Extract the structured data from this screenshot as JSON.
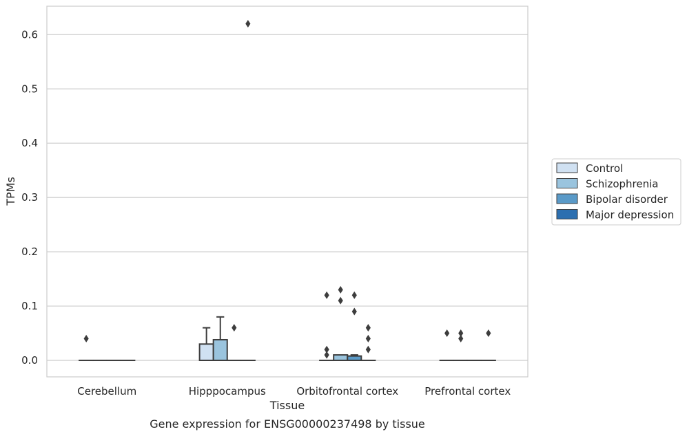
{
  "chart_data": {
    "type": "box",
    "title": "",
    "caption": "Gene expression for ENSG00000237498 by tissue",
    "xlabel": "Tissue",
    "ylabel": "TPMs",
    "ylim": [
      -0.03,
      0.65
    ],
    "yticks": [
      0.0,
      0.1,
      0.2,
      0.3,
      0.4,
      0.5,
      0.6
    ],
    "ytick_labels": [
      "0.0",
      "0.1",
      "0.2",
      "0.3",
      "0.4",
      "0.5",
      "0.6"
    ],
    "grid": "horizontal",
    "legend_position": "right",
    "categories": [
      "Cerebellum",
      "Hipppocampus",
      "Orbitofrontal cortex",
      "Prefrontal cortex"
    ],
    "series": [
      {
        "name": "Control",
        "color": "#d0e1f2",
        "boxes": [
          {
            "q1": 0.0,
            "median": 0.0,
            "q3": 0.0,
            "whisker_low": 0.0,
            "whisker_high": 0.0,
            "outliers": [
              0.04
            ]
          },
          {
            "q1": 0.0,
            "median": 0.0,
            "q3": 0.03,
            "whisker_low": 0.0,
            "whisker_high": 0.06,
            "outliers": []
          },
          {
            "q1": 0.0,
            "median": 0.0,
            "q3": 0.0,
            "whisker_low": 0.0,
            "whisker_high": 0.0,
            "outliers": [
              0.01,
              0.02,
              0.12
            ]
          },
          {
            "q1": 0.0,
            "median": 0.0,
            "q3": 0.0,
            "whisker_low": 0.0,
            "whisker_high": 0.0,
            "outliers": [
              0.05
            ]
          }
        ]
      },
      {
        "name": "Schizophrenia",
        "color": "#9ac4de",
        "boxes": [
          {
            "q1": 0.0,
            "median": 0.0,
            "q3": 0.0,
            "whisker_low": 0.0,
            "whisker_high": 0.0,
            "outliers": []
          },
          {
            "q1": 0.0,
            "median": 0.0,
            "q3": 0.038,
            "whisker_low": 0.0,
            "whisker_high": 0.08,
            "outliers": []
          },
          {
            "q1": 0.0,
            "median": 0.0,
            "q3": 0.01,
            "whisker_low": 0.0,
            "whisker_high": 0.01,
            "outliers": [
              0.11,
              0.13
            ]
          },
          {
            "q1": 0.0,
            "median": 0.0,
            "q3": 0.0,
            "whisker_low": 0.0,
            "whisker_high": 0.0,
            "outliers": [
              0.04,
              0.05
            ]
          }
        ]
      },
      {
        "name": "Bipolar disorder",
        "color": "#5a9ac8",
        "boxes": [
          {
            "q1": 0.0,
            "median": 0.0,
            "q3": 0.0,
            "whisker_low": 0.0,
            "whisker_high": 0.0,
            "outliers": []
          },
          {
            "q1": 0.0,
            "median": 0.0,
            "q3": 0.0,
            "whisker_low": 0.0,
            "whisker_high": 0.0,
            "outliers": [
              0.06
            ]
          },
          {
            "q1": 0.0,
            "median": 0.0,
            "q3": 0.008,
            "whisker_low": 0.0,
            "whisker_high": 0.01,
            "outliers": [
              0.09,
              0.12
            ]
          },
          {
            "q1": 0.0,
            "median": 0.0,
            "q3": 0.0,
            "whisker_low": 0.0,
            "whisker_high": 0.0,
            "outliers": []
          }
        ]
      },
      {
        "name": "Major depression",
        "color": "#2c6fb0",
        "boxes": [
          {
            "q1": 0.0,
            "median": 0.0,
            "q3": 0.0,
            "whisker_low": 0.0,
            "whisker_high": 0.0,
            "outliers": []
          },
          {
            "q1": 0.0,
            "median": 0.0,
            "q3": 0.0,
            "whisker_low": 0.0,
            "whisker_high": 0.0,
            "outliers": [
              0.62
            ]
          },
          {
            "q1": 0.0,
            "median": 0.0,
            "q3": 0.0,
            "whisker_low": 0.0,
            "whisker_high": 0.0,
            "outliers": [
              0.02,
              0.04,
              0.06
            ]
          },
          {
            "q1": 0.0,
            "median": 0.0,
            "q3": 0.0,
            "whisker_low": 0.0,
            "whisker_high": 0.0,
            "outliers": [
              0.05
            ]
          }
        ]
      }
    ]
  }
}
